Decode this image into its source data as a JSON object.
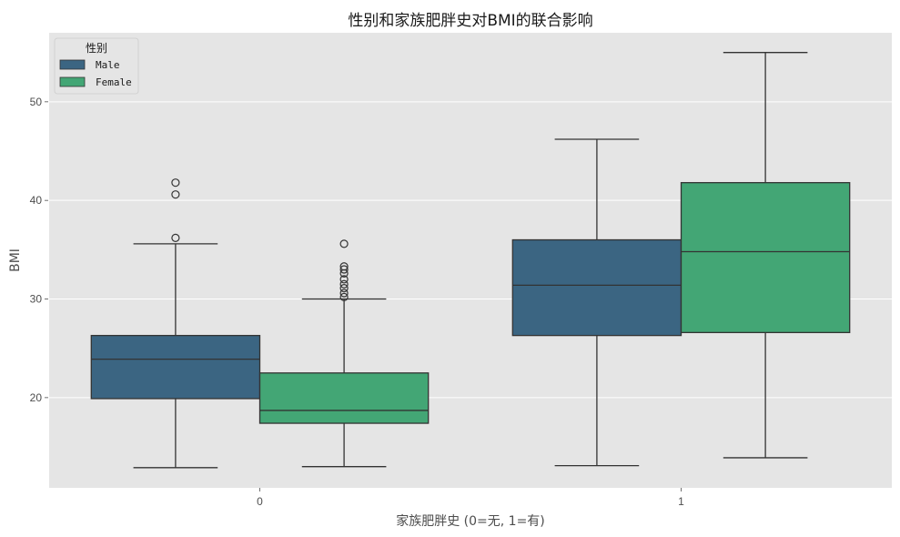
{
  "chart_data": {
    "type": "box",
    "title": "性别和家族肥胖史对BMI的联合影响",
    "xlabel": "家族肥胖史 (0=无, 1=有)",
    "ylabel": "BMI",
    "categories": [
      "0",
      "1"
    ],
    "ylim": [
      10.85,
      57.0
    ],
    "yticks": [
      20,
      30,
      40,
      50
    ],
    "grid": true,
    "legend": {
      "title": "性别",
      "position": "upper left",
      "entries": [
        "Male",
        "Female"
      ]
    },
    "series": [
      {
        "name": "Male",
        "color": "#3b6582",
        "boxes": [
          {
            "category": "0",
            "whisker_low": 12.9,
            "q1": 19.9,
            "median": 23.9,
            "q3": 26.3,
            "whisker_high": 35.6,
            "outliers": [
              36.2,
              40.6,
              41.8
            ]
          },
          {
            "category": "1",
            "whisker_low": 13.1,
            "q1": 26.3,
            "median": 31.4,
            "q3": 36.0,
            "whisker_high": 46.2,
            "outliers": []
          }
        ]
      },
      {
        "name": "Female",
        "color": "#43a675",
        "boxes": [
          {
            "category": "0",
            "whisker_low": 13.0,
            "q1": 17.4,
            "median": 18.7,
            "q3": 22.5,
            "whisker_high": 30.0,
            "outliers": [
              30.2,
              30.6,
              31.1,
              31.5,
              32.0,
              32.6,
              33.0,
              33.3,
              35.6
            ]
          },
          {
            "category": "1",
            "whisker_low": 13.9,
            "q1": 26.6,
            "median": 34.8,
            "q3": 41.8,
            "whisker_high": 55.0,
            "outliers": []
          }
        ]
      }
    ]
  },
  "colors": {
    "plot_bg": "#e5e5e5",
    "grid": "#ffffff",
    "edge": "#333333"
  }
}
